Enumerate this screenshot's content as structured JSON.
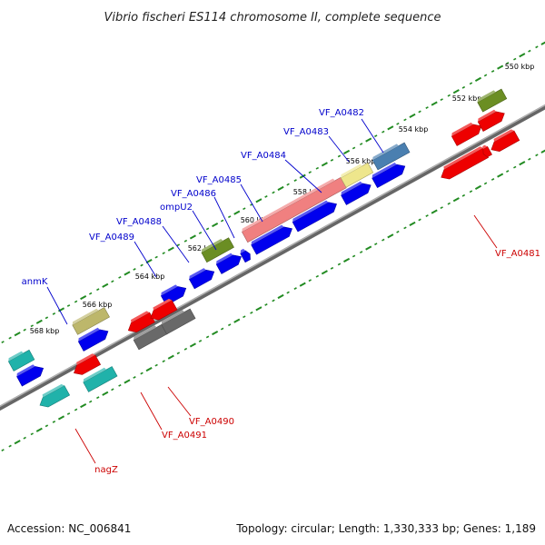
{
  "title": "Vibrio fischeri ES114 chromosome II, complete sequence",
  "footer": {
    "accession": "Accession: NC_006841",
    "summary": "Topology: circular; Length: 1,330,333 bp; Genes: 1,189"
  },
  "ticks": [
    "550 kbp",
    "552 kbp",
    "554 kbp",
    "556 kbp",
    "558 kbp",
    "560 kbp",
    "562 kbp",
    "564 kbp",
    "566 kbp",
    "568 kbp"
  ],
  "labels_upper": [
    "VF_A0482",
    "VF_A0483",
    "VF_A0484",
    "VF_A0485",
    "VF_A0486",
    "ompU2",
    "VF_A0488",
    "VF_A0489",
    "anmK"
  ],
  "labels_lower": [
    "VF_A0481",
    "VF_A0490",
    "VF_A0491",
    "nagZ"
  ],
  "colors": {
    "cds_blue": "#0000ee",
    "cds_red": "#ee0000",
    "olive": "#6b8e23",
    "khaki": "#bdb76b",
    "pale_yellow": "#eee68c",
    "steel_blue": "#4a7fb0",
    "salmon": "#f08080",
    "cyan": "#20b2aa",
    "gray": "#696969",
    "tick_green": "#228b22",
    "backbone": "#808080",
    "label_blue": "#0000cc",
    "label_red": "#cc0000"
  }
}
